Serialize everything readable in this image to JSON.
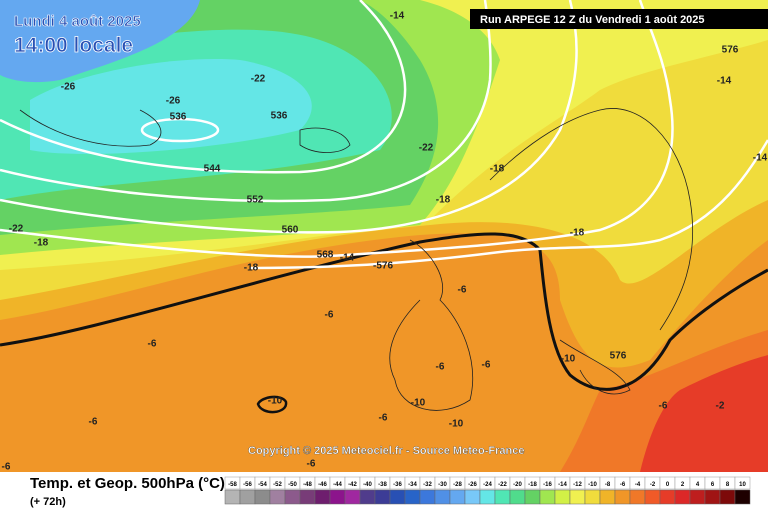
{
  "header": {
    "date": "Lundi 4 août 2025",
    "time": "14:00 locale",
    "run": "Run ARPEGE 12 Z du Vendredi 1 août 2025"
  },
  "copyright": "Copyright © 2025 Meteociel.fr - Source Meteo-France",
  "footer": {
    "title": "Temp. et Geop. 500hPa (°C)",
    "lead": "(+ 72h)"
  },
  "legend": {
    "labels": [
      -58,
      -56,
      -54,
      -52,
      -50,
      -48,
      -46,
      -44,
      -42,
      -40,
      -38,
      -36,
      -34,
      -32,
      -30,
      -28,
      -26,
      -24,
      -22,
      -20,
      -18,
      -16,
      -14,
      -12,
      -10,
      -8,
      -6,
      -4,
      -2,
      0,
      2,
      4,
      6,
      8,
      10
    ],
    "colors": [
      "#b4b4b4",
      "#a0a0a0",
      "#8c8c8c",
      "#a080a0",
      "#8c5a8c",
      "#783c78",
      "#6e1e6e",
      "#8c148c",
      "#a028a0",
      "#503c8c",
      "#3c3c96",
      "#2850b4",
      "#2864c8",
      "#3c78dc",
      "#5090e6",
      "#64a8f0",
      "#78c8f8",
      "#64e6e6",
      "#50e6b4",
      "#50dc8c",
      "#64d264",
      "#a0e650",
      "#d2f046",
      "#f0f050",
      "#f0dc3c",
      "#f0b428",
      "#f09628",
      "#f07828",
      "#f05a28",
      "#e63c28",
      "#dc2828",
      "#be1e1e",
      "#a01414",
      "#7d0a0a",
      "#1e0000"
    ]
  },
  "map_labels": [
    "-26",
    "-22",
    "-26",
    "536",
    "536",
    "-22",
    "544",
    "-18",
    "552",
    "-18",
    "560",
    "-22",
    "-18",
    "568",
    "-14",
    "-576",
    "-18",
    "-18",
    "-14",
    "576",
    "-14",
    "-14",
    "-6",
    "-6",
    "-6",
    "-10",
    "576",
    "-6",
    "-6",
    "-10",
    "-10",
    "-6",
    "-10",
    "-6",
    "-6",
    "-2",
    "-6",
    "-6"
  ]
}
